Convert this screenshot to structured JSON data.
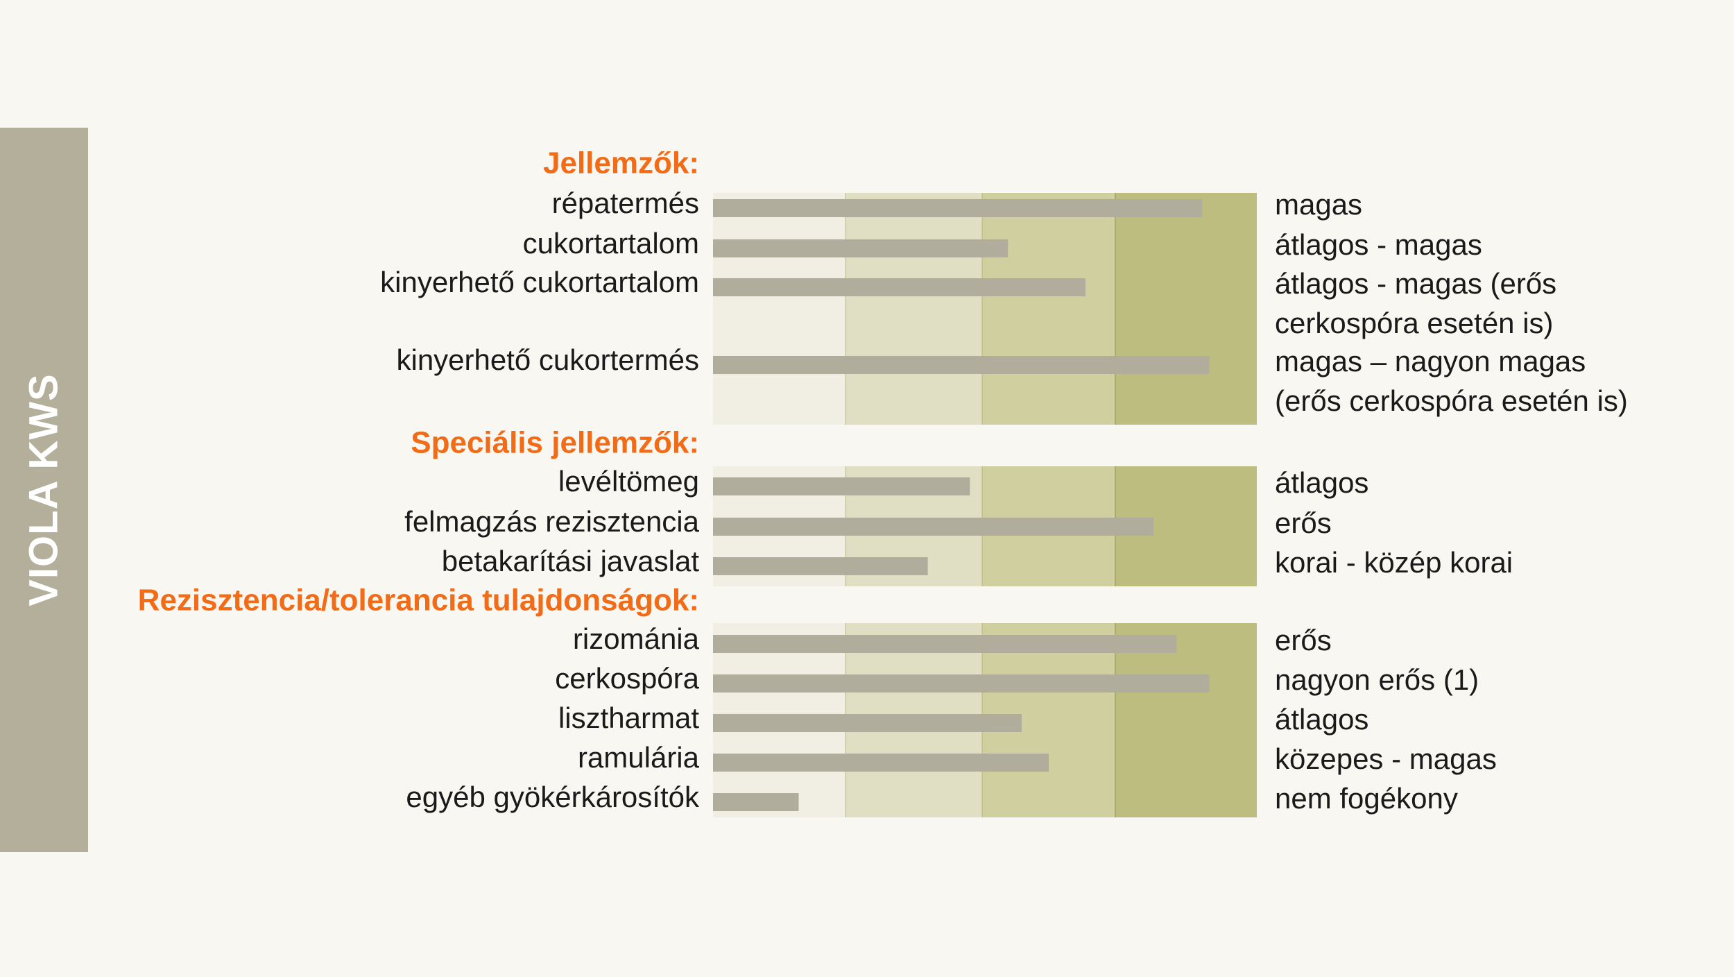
{
  "side_title": "VIOLA KWS",
  "zone_colors": [
    "#f1efe4",
    "#e0dfc4",
    "#cfcf9f",
    "#bcbd7f"
  ],
  "zone_divider_color": "#a7ab65",
  "bar_color": "#b0ad9c",
  "heading_color": "#f26b17",
  "chart_data": {
    "type": "bar",
    "orientation": "horizontal",
    "xlim": [
      0,
      4
    ],
    "grid": false,
    "legend": "none",
    "groups": [
      {
        "heading": "Jellemzők:",
        "rows": [
          {
            "label": "répatermés",
            "value": 3.6,
            "rating": [
              "magas"
            ]
          },
          {
            "label": "cukortartalom",
            "value": 2.17,
            "rating": [
              "átlagos - magas"
            ]
          },
          {
            "label": "kinyerhető cukortartalom",
            "value": 2.74,
            "rating": [
              "átlagos - magas (erős",
              "cerkospóra esetén is)"
            ]
          },
          {
            "label": "kinyerhető cukortermés",
            "value": 3.65,
            "rating": [
              "magas – nagyon magas",
              "(erős cerkospóra esetén is)"
            ]
          }
        ]
      },
      {
        "heading": "Speciális jellemzők:",
        "rows": [
          {
            "label": "levéltömeg",
            "value": 1.89,
            "rating": [
              "átlagos"
            ]
          },
          {
            "label": "felmagzás rezisztencia",
            "value": 3.24,
            "rating": [
              "erős"
            ]
          },
          {
            "label": "betakarítási javaslat",
            "value": 1.58,
            "rating": [
              "korai - közép korai"
            ]
          }
        ]
      },
      {
        "heading": "Rezisztencia/tolerancia tulajdonságok:",
        "rows": [
          {
            "label": "rizománia",
            "value": 3.41,
            "rating": [
              "erős"
            ]
          },
          {
            "label": "cerkospóra",
            "value": 3.65,
            "rating": [
              "nagyon erős (1)"
            ]
          },
          {
            "label": "lisztharmat",
            "value": 2.27,
            "rating": [
              "átlagos"
            ]
          },
          {
            "label": "ramulária",
            "value": 2.47,
            "rating": [
              "közepes - magas"
            ]
          },
          {
            "label": "egyéb gyökérkárosítók",
            "value": 0.63,
            "rating": [
              "nem fogékony"
            ]
          }
        ]
      }
    ]
  }
}
